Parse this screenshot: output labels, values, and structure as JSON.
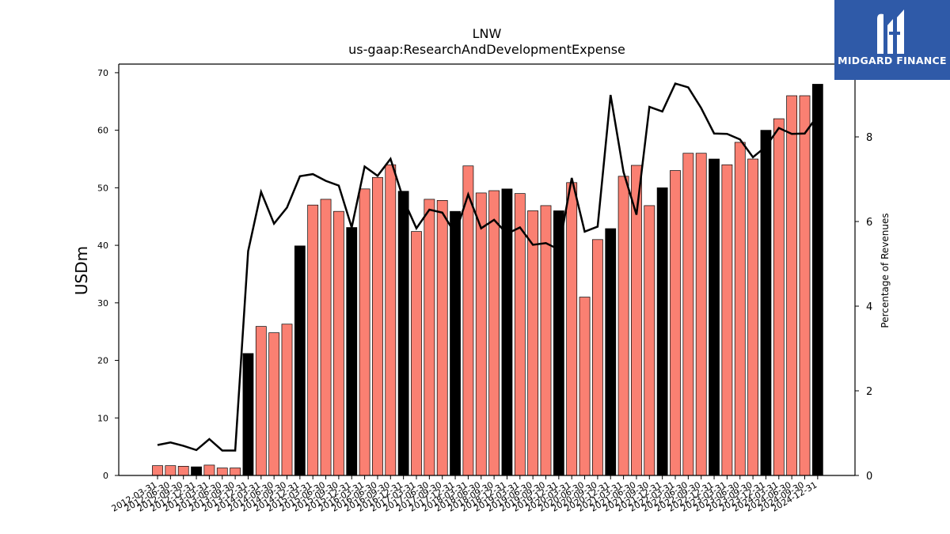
{
  "brand": {
    "name": "MIDGARD FINANCE",
    "logo_icon": "midgard-logo-icon"
  },
  "chart_data": {
    "type": "bar",
    "title": "LNW",
    "subtitle": "us-gaap:ResearchAndDevelopmentExpense",
    "ylabel": "USDm",
    "y2label": "Percentage of Revenues",
    "ylim": [
      0,
      71.5
    ],
    "y2lim": [
      0,
      9.72
    ],
    "yticks": [
      0,
      10,
      20,
      30,
      40,
      50,
      60,
      70
    ],
    "y2ticks": [
      0,
      2,
      4,
      6,
      8
    ],
    "colors": {
      "bar": "#fa8072",
      "bar_annual": "#000000",
      "line": "#000000"
    },
    "categories": [
      "2012-03-31",
      "2012-06-30",
      "2012-09-30",
      "2012-12-31",
      "2013-03-31",
      "2013-06-30",
      "2013-09-30",
      "2013-12-31",
      "2014-03-31",
      "2014-06-30",
      "2014-09-30",
      "2014-12-31",
      "2015-03-31",
      "2015-06-30",
      "2015-09-30",
      "2015-12-31",
      "2016-03-31",
      "2016-06-30",
      "2016-09-30",
      "2016-12-31",
      "2017-03-31",
      "2017-06-30",
      "2017-09-30",
      "2017-12-31",
      "2018-03-31",
      "2018-06-30",
      "2018-09-30",
      "2018-12-31",
      "2019-03-31",
      "2019-06-30",
      "2019-09-30",
      "2019-12-31",
      "2020-03-31",
      "2020-06-30",
      "2020-09-30",
      "2020-12-31",
      "2021-03-31",
      "2021-06-30",
      "2021-09-30",
      "2021-12-31",
      "2022-03-31",
      "2022-06-30",
      "2022-09-30",
      "2022-12-31",
      "2023-03-31",
      "2023-06-30",
      "2023-09-30",
      "2023-12-31",
      "2024-03-31",
      "2024-06-30",
      "2024-09-30",
      "2024-12-31"
    ],
    "series": [
      {
        "type": "bar",
        "values": [
          1.7,
          1.7,
          1.6,
          1.5,
          1.8,
          1.3,
          1.3,
          21.2,
          25.9,
          24.8,
          26.3,
          39.9,
          47.0,
          48.0,
          45.9,
          43.1,
          49.8,
          51.8,
          54.0,
          49.4,
          42.4,
          48.0,
          47.8,
          45.9,
          53.8,
          49.1,
          49.5,
          49.8,
          49.0,
          46.0,
          46.9,
          46.0,
          50.9,
          31.0,
          41.0,
          42.9,
          52.0,
          53.9,
          46.9,
          50.0,
          53.0,
          56.0,
          56.0,
          55.0,
          54.0,
          57.9,
          55.0,
          60.0,
          62.0,
          66.0,
          66.0,
          68.0
        ],
        "annual": [
          3,
          7,
          11,
          15,
          19,
          23,
          27,
          31,
          35,
          39,
          43,
          47,
          51
        ]
      },
      {
        "type": "line",
        "axis": "right",
        "values": [
          0.72,
          0.78,
          0.7,
          0.6,
          0.86,
          0.59,
          0.59,
          5.3,
          6.7,
          5.95,
          6.33,
          7.07,
          7.12,
          6.96,
          6.85,
          5.86,
          7.3,
          7.08,
          7.48,
          6.52,
          5.84,
          6.28,
          6.21,
          5.71,
          6.64,
          5.84,
          6.04,
          5.71,
          5.86,
          5.45,
          5.49,
          5.34,
          7.03,
          5.76,
          5.88,
          8.99,
          7.17,
          6.16,
          8.71,
          8.6,
          9.26,
          9.17,
          8.68,
          8.08,
          8.07,
          7.94,
          7.52,
          7.77,
          8.21,
          8.07,
          8.08,
          8.5
        ]
      }
    ]
  }
}
